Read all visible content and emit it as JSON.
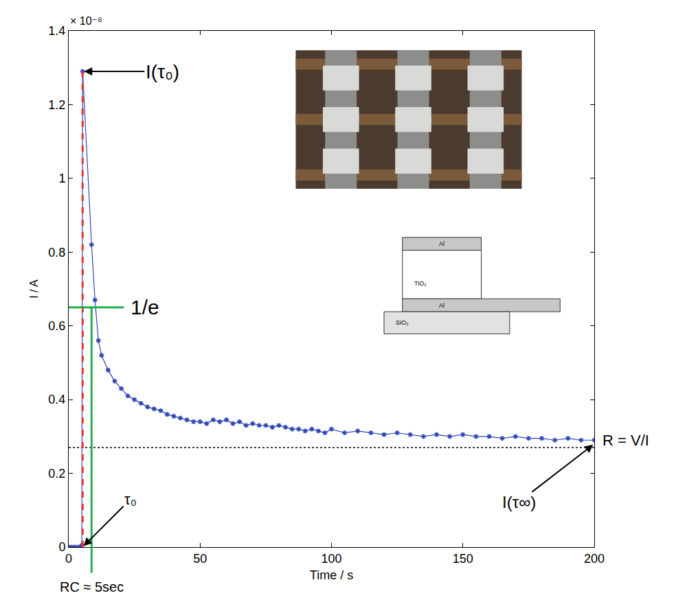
{
  "chart_data": {
    "type": "line",
    "x_label": "Time / s",
    "y_label": "I / A",
    "y_multiplier_label": "× 10⁻⁸",
    "xlim": [
      0,
      200
    ],
    "ylim": [
      0,
      1.4
    ],
    "xticks": [
      0,
      50,
      100,
      150,
      200
    ],
    "yticks": [
      0,
      0.2,
      0.4,
      0.6,
      0.8,
      1,
      1.2,
      1.4
    ],
    "grid": false,
    "color": "#2f45b8",
    "marker": "asterisk",
    "line_style": "solid",
    "x": [
      0,
      1,
      2,
      3,
      4,
      5,
      5.3,
      8.7,
      10,
      11.3,
      12.5,
      15,
      17.5,
      20,
      22.5,
      25,
      27.5,
      30,
      32.5,
      35,
      37.5,
      40,
      42.5,
      45,
      47.5,
      50,
      52.5,
      55,
      57.5,
      60,
      62.5,
      65,
      67.5,
      70,
      72.5,
      75,
      77.5,
      80,
      82.5,
      85,
      87.5,
      90,
      92.5,
      95,
      97.5,
      100,
      105,
      110,
      115,
      120,
      125,
      130,
      135,
      140,
      145,
      150,
      155,
      160,
      165,
      170,
      175,
      180,
      185,
      190,
      195,
      200
    ],
    "values": [
      0,
      0,
      0,
      0,
      0,
      0.005,
      1.29,
      0.82,
      0.67,
      0.56,
      0.52,
      0.48,
      0.45,
      0.43,
      0.41,
      0.4,
      0.39,
      0.38,
      0.375,
      0.37,
      0.36,
      0.355,
      0.35,
      0.345,
      0.34,
      0.34,
      0.335,
      0.345,
      0.34,
      0.345,
      0.335,
      0.34,
      0.33,
      0.335,
      0.33,
      0.33,
      0.325,
      0.33,
      0.325,
      0.32,
      0.32,
      0.315,
      0.32,
      0.315,
      0.31,
      0.32,
      0.31,
      0.315,
      0.31,
      0.305,
      0.31,
      0.305,
      0.3,
      0.305,
      0.3,
      0.305,
      0.3,
      0.3,
      0.295,
      0.3,
      0.295,
      0.295,
      0.29,
      0.295,
      0.29,
      0.29
    ],
    "reference_lines": {
      "tau0": {
        "x": 5.3,
        "y": 1.29,
        "color": "#e8332a",
        "line_style": "dashed"
      },
      "one_over_e": {
        "y": 0.65,
        "x_end": 21,
        "color": "#22b14c",
        "line_style": "solid"
      },
      "rc": {
        "x": 8.7,
        "color": "#22b14c",
        "line_style": "solid"
      },
      "asymptote": {
        "y": 0.27,
        "color": "#000000",
        "line_style": "dotted"
      }
    },
    "annotations": [
      {
        "text": "I(τ₀)",
        "x": 5.3,
        "y": 1.29
      },
      {
        "text": "1/e",
        "x": 23,
        "y": 0.65
      },
      {
        "text": "τ₀",
        "x": 5.3,
        "y": 0
      },
      {
        "text": "I(τ∞)",
        "x": 200,
        "y": 0.28
      },
      {
        "text": "R = V/I",
        "x": 200,
        "y": 0.29
      },
      {
        "text": "RC ≈ 5sec",
        "x": 8.7
      }
    ],
    "inset_diagram": {
      "layers": [
        "Al",
        "TiO₂",
        "Al",
        "SiO₂"
      ]
    }
  }
}
